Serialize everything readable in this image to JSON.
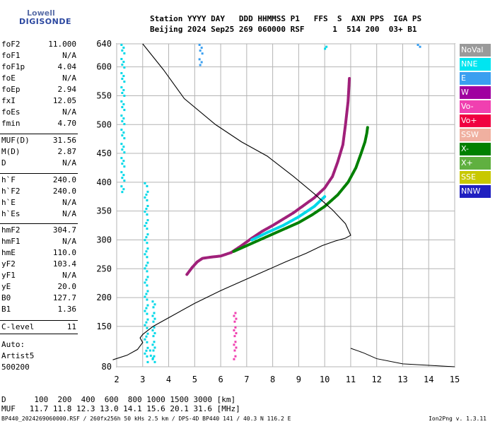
{
  "logo": {
    "line1": "Lowell",
    "line2": "DIGISONDE"
  },
  "header": {
    "line1": "Station YYYY DAY   DDD HHMMSS P1   FFS  S  AXN PPS  IGA PS",
    "line2": "Beijing 2024 Sep25 269 060000 RSF      1  514 200  03+ B1"
  },
  "params_group1": [
    {
      "name": "foF2",
      "value": "11.000"
    },
    {
      "name": "foF1",
      "value": "N/A"
    },
    {
      "name": "foF1p",
      "value": "4.04"
    },
    {
      "name": "foE",
      "value": "N/A"
    },
    {
      "name": "foEp",
      "value": "2.94"
    },
    {
      "name": "fxI",
      "value": "12.05"
    },
    {
      "name": "foEs",
      "value": "N/A"
    },
    {
      "name": "fmin",
      "value": "4.70"
    }
  ],
  "params_group2": [
    {
      "name": "MUF(D)",
      "value": "31.56"
    },
    {
      "name": "M(D)",
      "value": "2.87"
    },
    {
      "name": "D",
      "value": "N/A"
    }
  ],
  "params_group3": [
    {
      "name": "h`F",
      "value": "240.0"
    },
    {
      "name": "h`F2",
      "value": "240.0"
    },
    {
      "name": "h`E",
      "value": "N/A"
    },
    {
      "name": "h`Es",
      "value": "N/A"
    }
  ],
  "params_group4": [
    {
      "name": "hmF2",
      "value": "304.7"
    },
    {
      "name": "hmF1",
      "value": "N/A"
    },
    {
      "name": "hmE",
      "value": "110.0"
    },
    {
      "name": "yF2",
      "value": "103.4"
    },
    {
      "name": "yF1",
      "value": "N/A"
    },
    {
      "name": "yE",
      "value": "20.0"
    },
    {
      "name": "B0",
      "value": "127.7"
    },
    {
      "name": "B1",
      "value": "1.36"
    }
  ],
  "params_group5": [
    {
      "name": "C-level",
      "value": "11"
    }
  ],
  "scaling": {
    "line1": "Auto:",
    "line2": "Artist5",
    "line3": "500200"
  },
  "legend": [
    {
      "label": "NoVal",
      "color": "#9a9a9a"
    },
    {
      "label": "NNE",
      "color": "#00e5f0"
    },
    {
      "label": "E",
      "color": "#3a9ff0"
    },
    {
      "label": "W",
      "color": "#a000a0"
    },
    {
      "label": "Vo-",
      "color": "#f040b0"
    },
    {
      "label": "Vo+",
      "color": "#f00040"
    },
    {
      "label": "SSW",
      "color": "#f0b0a0"
    },
    {
      "label": "X-",
      "color": "#008000"
    },
    {
      "label": "X+",
      "color": "#60b040"
    },
    {
      "label": "SSE",
      "color": "#c8c800"
    },
    {
      "label": "NNW",
      "color": "#2020c0"
    }
  ],
  "footer": {
    "d_line": "D      100  200  400  600  800 1000 1500 3000 [km]",
    "muf_line": "MUF   11.7 11.8 12.3 13.0 14.1 15.6 20.1 31.6 [MHz]",
    "status": "BP440_2024269060000.RSF / 260fx256h 50 kHs 2.5 km / DPS-4D BP440 141 / 40.3 N 116.2 E",
    "version": "Ion2Png v. 1.3.11"
  },
  "chart_data": {
    "type": "scatter",
    "x_ticks": [
      2,
      3,
      4,
      5,
      6,
      7,
      8,
      9,
      10,
      11,
      12,
      13,
      14,
      15
    ],
    "y_ticks": [
      80,
      150,
      200,
      250,
      300,
      350,
      400,
      450,
      500,
      550,
      600,
      640
    ],
    "xlim": [
      2,
      15
    ],
    "ylim": [
      80,
      640
    ],
    "grid": true,
    "series": [
      {
        "name": "Vo-",
        "color": "#a0207a",
        "x": [
          4.7,
          4.9,
          5.1,
          5.3,
          5.6,
          6.0,
          6.4,
          6.8,
          7.2,
          7.6,
          8.0,
          8.4,
          8.8,
          9.2,
          9.6,
          10.0,
          10.3,
          10.5,
          10.7,
          10.8,
          10.9,
          10.95
        ],
        "y": [
          240,
          252,
          262,
          268,
          270,
          272,
          278,
          290,
          303,
          315,
          325,
          336,
          347,
          360,
          373,
          390,
          410,
          435,
          465,
          500,
          540,
          580
        ]
      },
      {
        "name": "X-",
        "color": "#008000",
        "x": [
          6.5,
          7.0,
          7.5,
          8.0,
          8.5,
          9.0,
          9.5,
          10.0,
          10.5,
          10.9,
          11.2,
          11.4,
          11.55,
          11.62,
          11.65
        ],
        "y": [
          280,
          290,
          300,
          310,
          320,
          330,
          343,
          358,
          378,
          400,
          425,
          450,
          470,
          485,
          495
        ]
      },
      {
        "name": "NNE",
        "color": "#00d8e8",
        "x": [
          7.2,
          7.8,
          8.4,
          9.0,
          9.6,
          10.0
        ],
        "y": [
          300,
          313,
          325,
          340,
          358,
          375
        ]
      }
    ],
    "profile": {
      "name": "electron density profile",
      "color": "#000000",
      "x": [
        1.85,
        2.4,
        2.8,
        3.0,
        2.9,
        3.0,
        3.4,
        4.0,
        5.0,
        6.0,
        7.5,
        8.5,
        9.3,
        9.9,
        10.4,
        10.8,
        11.0,
        10.8,
        10.3,
        9.6,
        8.8,
        7.8,
        6.8,
        5.8,
        4.6,
        3.8,
        3.0
      ],
      "y": [
        92,
        100,
        110,
        122,
        130,
        136,
        150,
        165,
        190,
        212,
        242,
        262,
        277,
        290,
        298,
        303,
        308,
        328,
        352,
        380,
        410,
        445,
        470,
        500,
        545,
        595,
        640
      ]
    },
    "muf_curve": {
      "x": [
        15.0,
        13.0,
        12.0,
        11.5,
        11.0
      ],
      "y": [
        80,
        85,
        94,
        104,
        112
      ]
    },
    "clutter": [
      {
        "x": 2.2,
        "y_range": [
          380,
          640
        ],
        "color": "#00d8e8"
      },
      {
        "x": 3.1,
        "y_range": [
          85,
          400
        ],
        "color": "#00d8e8"
      },
      {
        "x": 3.4,
        "y_range": [
          85,
          195
        ],
        "color": "#00d8e8"
      },
      {
        "x": 3.3,
        "y_range": [
          92,
          110
        ],
        "color": "#00d8e8"
      },
      {
        "x": 5.2,
        "y_range": [
          600,
          640
        ],
        "color": "#3a9ff0"
      },
      {
        "x": 6.5,
        "y_range": [
          90,
          180
        ],
        "color": "#f040b0"
      },
      {
        "x": 10.0,
        "y_range": [
          630,
          640
        ],
        "color": "#00d8e8"
      },
      {
        "x": 13.6,
        "y_range": [
          630,
          640
        ],
        "color": "#3a9ff0"
      }
    ]
  }
}
